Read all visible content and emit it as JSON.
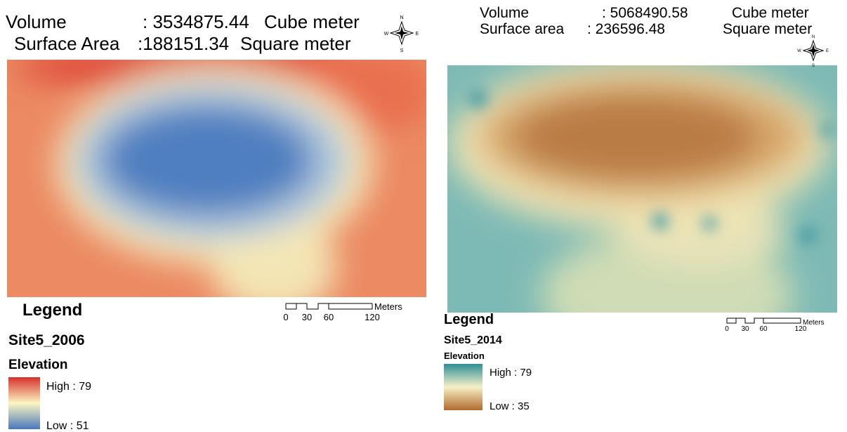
{
  "panels": [
    {
      "volume_label": "Volume",
      "volume_value": ": 3534875.44",
      "volume_unit": "Cube meter",
      "area_label": "Surface Area",
      "area_value": ":188151.34",
      "area_unit": "Square meter",
      "compass": {
        "n": "N",
        "e": "E",
        "s": "S",
        "w": "W"
      },
      "legend_title": "Legend",
      "scale_labels": [
        "0",
        "30",
        "60",
        "120"
      ],
      "scale_unit": "Meters",
      "layer": "Site5_2006",
      "field": "Elevation",
      "high": "High : 79",
      "low": "Low : 51"
    },
    {
      "volume_label": "Volume",
      "volume_value": ": 5068490.58",
      "volume_unit": "Cube meter",
      "area_label": "Surface area",
      "area_value": ": 236596.48",
      "area_unit": "Square meter",
      "compass": {
        "n": "N",
        "e": "E",
        "s": "S",
        "w": "W"
      },
      "legend_title": "Legend",
      "scale_labels": [
        "0",
        "30",
        "60",
        "120"
      ],
      "scale_unit": "Meters",
      "layer": "Site5_2014",
      "field": "Elevation",
      "high": "High : 79",
      "low": "Low : 35"
    }
  ]
}
